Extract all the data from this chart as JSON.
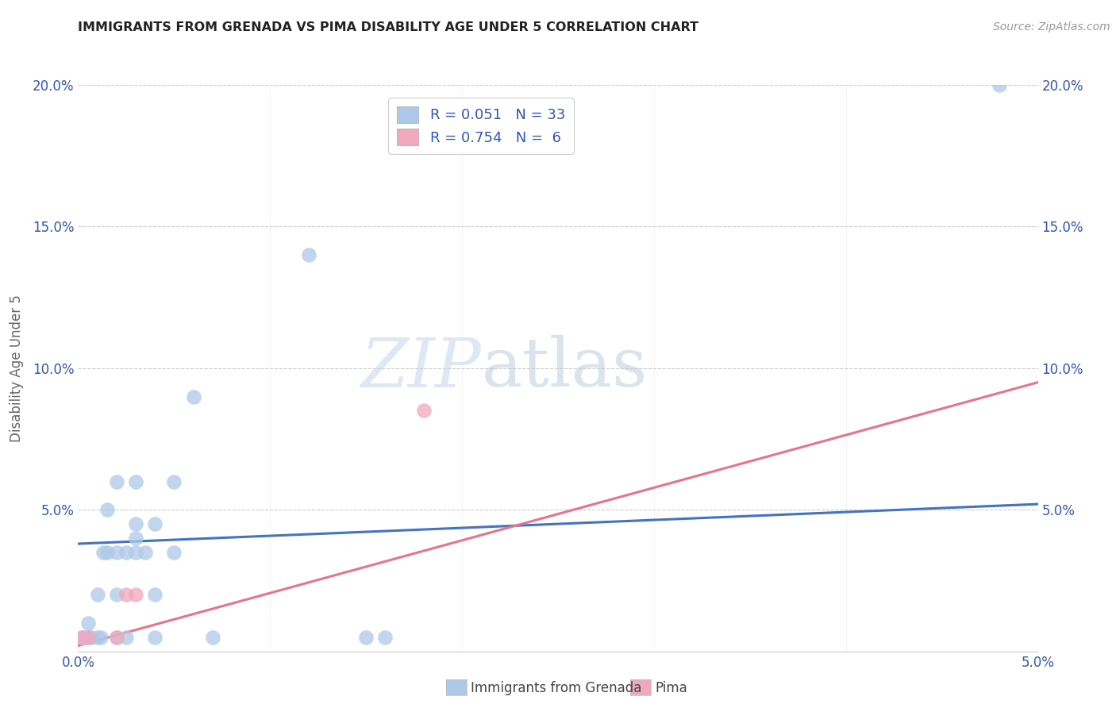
{
  "title": "IMMIGRANTS FROM GRENADA VS PIMA DISABILITY AGE UNDER 5 CORRELATION CHART",
  "source": "Source: ZipAtlas.com",
  "ylabel": "Disability Age Under 5",
  "xlim": [
    0.0,
    0.05
  ],
  "ylim": [
    0.0,
    0.2
  ],
  "blue_scatter_x": [
    0.0002,
    0.0003,
    0.0005,
    0.0005,
    0.0007,
    0.001,
    0.001,
    0.0012,
    0.0013,
    0.0015,
    0.0015,
    0.002,
    0.002,
    0.002,
    0.002,
    0.0025,
    0.0025,
    0.003,
    0.003,
    0.003,
    0.003,
    0.0035,
    0.004,
    0.004,
    0.004,
    0.005,
    0.005,
    0.006,
    0.007,
    0.012,
    0.015,
    0.016,
    0.048
  ],
  "blue_scatter_y": [
    0.005,
    0.005,
    0.005,
    0.01,
    0.005,
    0.005,
    0.02,
    0.005,
    0.035,
    0.035,
    0.05,
    0.005,
    0.02,
    0.035,
    0.06,
    0.005,
    0.035,
    0.035,
    0.04,
    0.045,
    0.06,
    0.035,
    0.005,
    0.02,
    0.045,
    0.035,
    0.06,
    0.09,
    0.005,
    0.14,
    0.005,
    0.005,
    0.2
  ],
  "pink_scatter_x": [
    0.0002,
    0.0005,
    0.002,
    0.0025,
    0.003,
    0.018
  ],
  "pink_scatter_y": [
    0.005,
    0.005,
    0.005,
    0.02,
    0.02,
    0.085
  ],
  "blue_line_x": [
    0.0,
    0.05
  ],
  "blue_line_y": [
    0.038,
    0.052
  ],
  "pink_line_x": [
    0.0,
    0.05
  ],
  "pink_line_y": [
    0.002,
    0.095
  ],
  "legend_r_blue": "R = 0.051",
  "legend_n_blue": "N = 33",
  "legend_r_pink": "R = 0.754",
  "legend_n_pink": "N =  6",
  "blue_color": "#adc8e8",
  "pink_color": "#f0a8bc",
  "blue_line_color": "#4472c4",
  "pink_line_color": "#e8748c",
  "text_color_blue": "#3355bb",
  "legend_label_blue": "Immigrants from Grenada",
  "legend_label_pink": "Pima",
  "watermark_zip": "ZIP",
  "watermark_atlas": "atlas",
  "background_color": "#ffffff",
  "grid_color": "#cccccc"
}
